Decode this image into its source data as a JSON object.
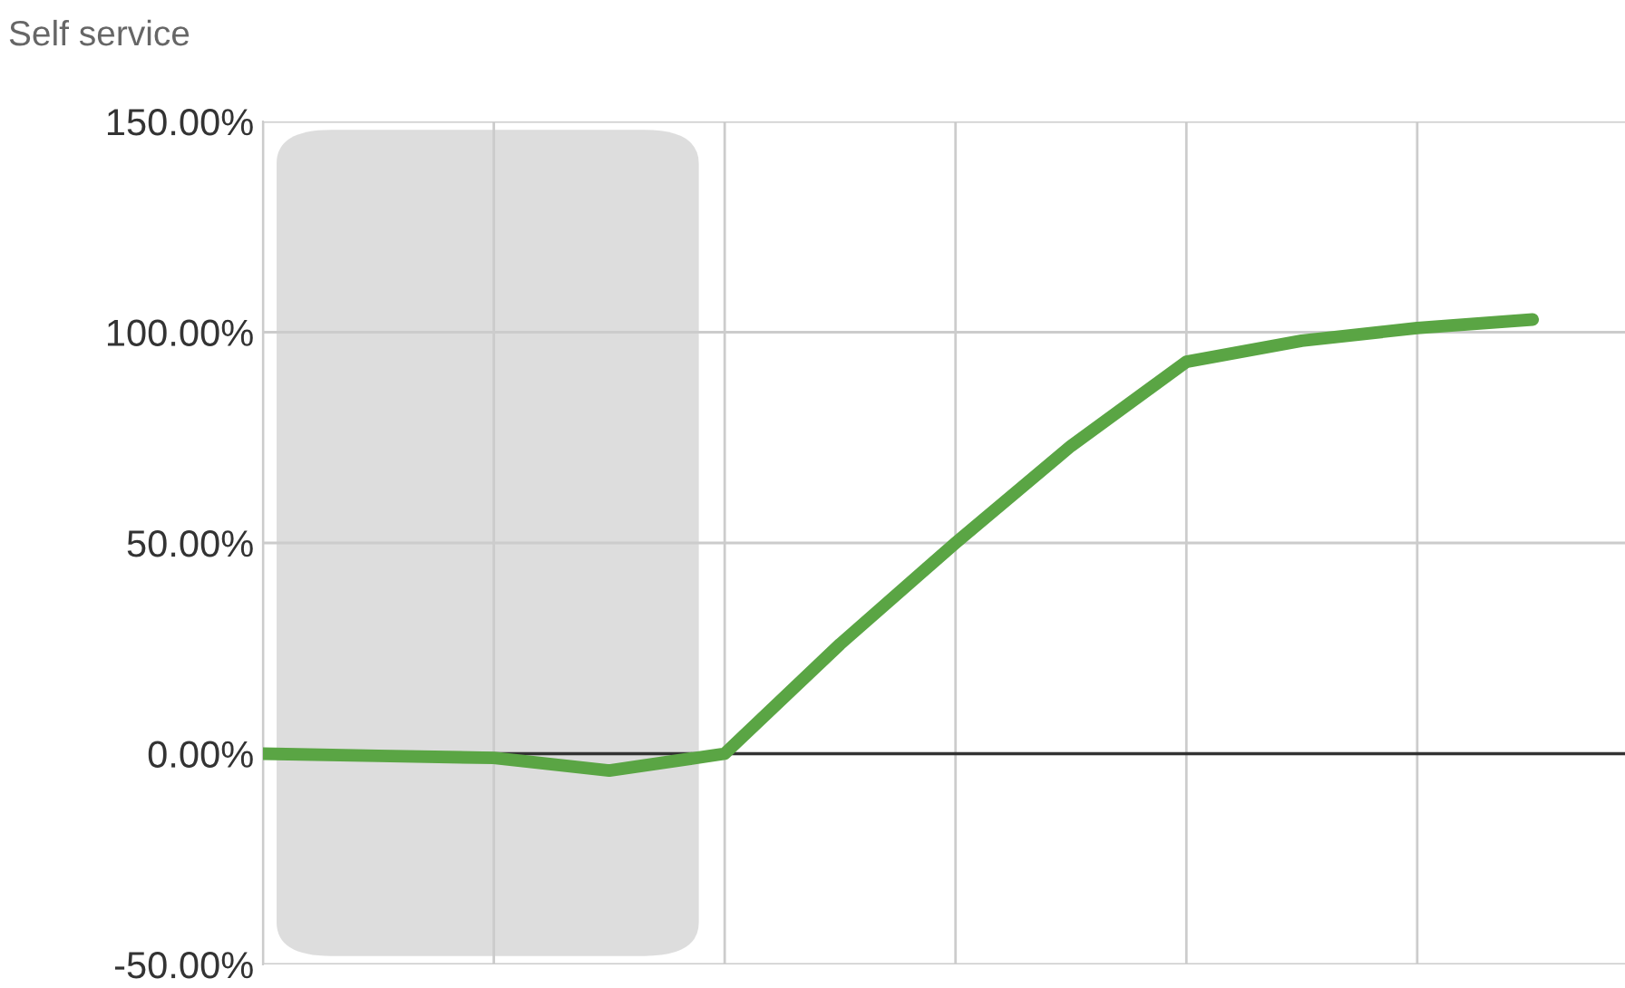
{
  "chart_data": {
    "type": "line",
    "title": "Self service",
    "categories": [
      null,
      null,
      null,
      null,
      null,
      null,
      null,
      null,
      null,
      null,
      null,
      null
    ],
    "series": [
      {
        "color": "#5aa544",
        "values": [
          0,
          -0.5,
          -1,
          -4,
          0,
          26,
          50,
          73,
          93,
          98,
          101,
          103
        ]
      }
    ],
    "ylim": [
      -50,
      150
    ],
    "yticks": [
      {
        "value": -50,
        "label": "-50.00%"
      },
      {
        "value": 0,
        "label": "0.00%"
      },
      {
        "value": 50,
        "label": "50.00%"
      },
      {
        "value": 100,
        "label": "100.00%"
      },
      {
        "value": 150,
        "label": "150.00%"
      }
    ],
    "tick_labels": "y",
    "grid": true,
    "legend": false,
    "marker": "none",
    "line_style": "solid",
    "ref_lines": [
      {
        "axis": "y",
        "value": 0,
        "color": "#333333"
      }
    ]
  }
}
